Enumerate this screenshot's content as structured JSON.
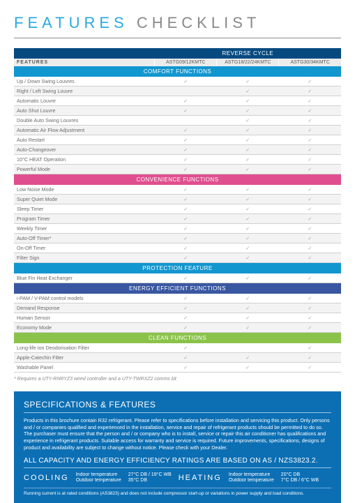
{
  "title_feat": "FEATURES",
  "title_check": "CHECKLIST",
  "columns_header_label": "FEATURES",
  "reverse_cycle_label": "REVERSE CYCLE",
  "model_cols": [
    "ASTG09/12KMTC",
    "ASTG18/22/24KMTC",
    "ASTG30/34KMTC"
  ],
  "checkmark": "✓",
  "sections": [
    {
      "label": "COMFORT FUNCTIONS",
      "barClass": "blue",
      "rows": [
        {
          "name": "Up / Down Swing Louvres",
          "v": [
            1,
            1,
            1
          ],
          "alt": 0
        },
        {
          "name": "Right / Left Swing Louvre",
          "v": [
            0,
            1,
            1
          ],
          "alt": 1
        },
        {
          "name": "Automatic Louvre",
          "v": [
            1,
            1,
            1
          ],
          "alt": 0
        },
        {
          "name": "Auto Shut Louvre",
          "v": [
            1,
            1,
            1
          ],
          "alt": 1
        },
        {
          "name": "Double Auto Swing Louvres",
          "v": [
            0,
            1,
            1
          ],
          "alt": 0
        },
        {
          "name": "Automatic Air Flow Adjustment",
          "v": [
            1,
            1,
            1
          ],
          "alt": 1
        },
        {
          "name": "Auto Restart",
          "v": [
            1,
            1,
            1
          ],
          "alt": 0
        },
        {
          "name": "Auto-Changeover",
          "v": [
            1,
            1,
            1
          ],
          "alt": 1
        },
        {
          "name": "10°C HEAT Operation",
          "v": [
            1,
            1,
            1
          ],
          "alt": 0
        },
        {
          "name": "Powerful Mode",
          "v": [
            1,
            1,
            1
          ],
          "alt": 1
        }
      ]
    },
    {
      "label": "CONVENIENCE FUNCTIONS",
      "barClass": "pink",
      "rows": [
        {
          "name": "Low Noise Mode",
          "v": [
            1,
            1,
            1
          ],
          "alt": 0
        },
        {
          "name": "Super Quiet Mode",
          "v": [
            1,
            1,
            1
          ],
          "alt": 1
        },
        {
          "name": "Sleep Timer",
          "v": [
            1,
            1,
            1
          ],
          "alt": 0
        },
        {
          "name": "Program Timer",
          "v": [
            1,
            1,
            1
          ],
          "alt": 1
        },
        {
          "name": "Weekly Timer",
          "v": [
            1,
            1,
            1
          ],
          "alt": 0
        },
        {
          "name": "Auto-Off Timer*",
          "v": [
            1,
            1,
            1
          ],
          "alt": 1
        },
        {
          "name": "On-Off Timer",
          "v": [
            1,
            1,
            1
          ],
          "alt": 0
        },
        {
          "name": "Filter Sign",
          "v": [
            1,
            1,
            1
          ],
          "alt": 1
        }
      ]
    },
    {
      "label": "PROTECTION FEATURE",
      "barClass": "blue",
      "rows": [
        {
          "name": "Blue Fin Heat Exchanger",
          "v": [
            1,
            1,
            1
          ],
          "alt": 0
        }
      ]
    },
    {
      "label": "ENERGY EFFICIENT FUNCTIONS",
      "barClass": "purple",
      "rows": [
        {
          "name": "i-PAM / V-PAM control models",
          "v": [
            1,
            1,
            1
          ],
          "alt": 0
        },
        {
          "name": "Demand Response",
          "v": [
            1,
            1,
            1
          ],
          "alt": 1
        },
        {
          "name": "Human Sensor",
          "v": [
            1,
            1,
            1
          ],
          "alt": 0
        },
        {
          "name": "Economy Mode",
          "v": [
            1,
            1,
            1
          ],
          "alt": 1
        }
      ]
    },
    {
      "label": "CLEAN FUNCTIONS",
      "barClass": "lime",
      "rows": [
        {
          "name": "Long-life Ion Deodorisation Filter",
          "v": [
            1,
            0,
            1
          ],
          "alt": 0
        },
        {
          "name": "Apple-Catechin Filter",
          "v": [
            1,
            1,
            1
          ],
          "alt": 1
        },
        {
          "name": "Washable Panel",
          "v": [
            1,
            1,
            1
          ],
          "alt": 0
        }
      ]
    }
  ],
  "footnote": "* Requires a UTY-RNRYZ3 wired controller and a UTY-TWRXZ2 comms kit",
  "spec": {
    "title": "SPECIFICATIONS & FEATURES",
    "body": "Products in this brochure contain R32 refrigerant. Please refer to specifications before installation and servicing this product. Only persons and / or companies qualified and experienced in the installation, service and repair of refrigerant products should be permitted to do so. The purchaser must ensure that the person and / or company who is to install, service or repair this air conditioner has qualifications and experience in refrigerant products.\nSuitable access for warranty and service is required. Future improvements, specifications, designs of product and availability are subject to change without notice. Please check with your Dealer.",
    "sub": "ALL CAPACITY AND ENERGY EFFICIENCY RATINGS ARE BASED ON AS / NZS3823.2.",
    "cooling_label": "COOLING",
    "heating_label": "HEATING",
    "cool_indoor_l": "Indoor temperature",
    "cool_outdoor_l": "Outdoor temperature",
    "cool_indoor_v": "27°C DB / 19°C WB",
    "cool_outdoor_v": "35°C DB",
    "heat_indoor_l": "Indoor temperature",
    "heat_outdoor_l": "Outdoor temperature",
    "heat_indoor_v": "20°C DB",
    "heat_outdoor_v": "7°C DB / 6°C WB",
    "foot": "Running current is at rated conditions (AS3823) and does not include compressor start-up or variations in power supply and load conditions."
  }
}
